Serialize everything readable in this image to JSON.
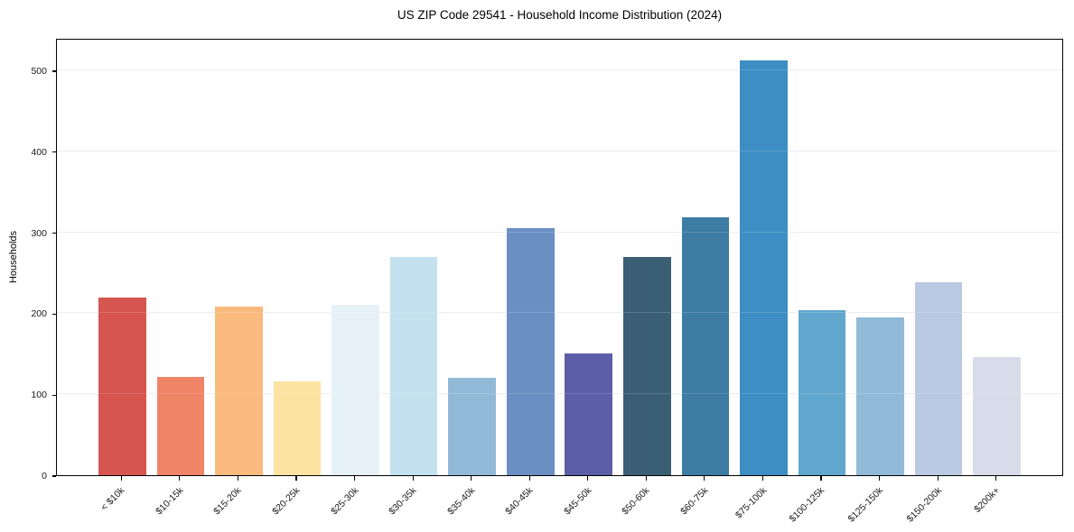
{
  "chart_data": {
    "type": "bar",
    "title": "US ZIP Code 29541 - Household Income Distribution (2024)",
    "xlabel": "",
    "ylabel": "Households",
    "categories": [
      "< $10k",
      "$10-15k",
      "$15-20k",
      "$20-25k",
      "$25-30k",
      "$30-35k",
      "$35-40k",
      "$40-45k",
      "$45-50k",
      "$50-60k",
      "$60-75k",
      "$75-100k",
      "$100-125k",
      "$125-150k",
      "$150-200k",
      "$200k+"
    ],
    "values": [
      219,
      121,
      208,
      116,
      210,
      269,
      120,
      305,
      150,
      269,
      319,
      512,
      204,
      195,
      238,
      146
    ],
    "bar_colors": [
      "#d6554f",
      "#f08466",
      "#fab97d",
      "#fde3a1",
      "#e5f1f7",
      "#c3e1ee",
      "#92bad8",
      "#6b8fc3",
      "#5c5fa7",
      "#3a5f75",
      "#3d7ca3",
      "#3d8ec4",
      "#62a7cd",
      "#91bad9",
      "#b9c9e1",
      "#d8dcea"
    ],
    "yticks": [
      0,
      100,
      200,
      300,
      400,
      500
    ],
    "ylim": [
      0,
      540
    ],
    "grid": "horizontal",
    "gridline_color": "#e9e9ee",
    "axis_color": "#000000",
    "background_color": "#ffffff",
    "legend": "none",
    "x_tick_rotation_degrees": 45
  }
}
